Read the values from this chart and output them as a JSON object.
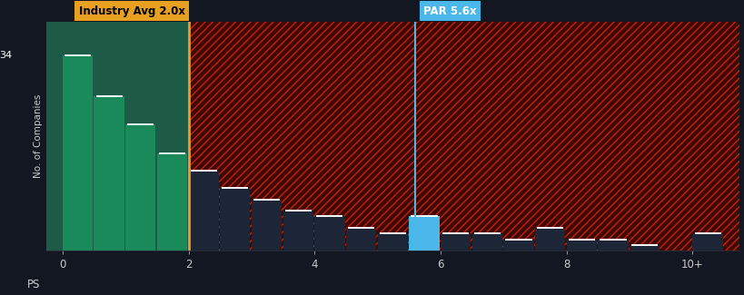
{
  "background_color": "#131722",
  "plot_bg_color": "#131722",
  "xlabel": "PS",
  "ylabel": "No. of Companies",
  "bar_edges": [
    0,
    0.5,
    1.0,
    1.5,
    2.0,
    2.5,
    3.0,
    3.5,
    4.0,
    4.5,
    5.0,
    5.5,
    6.0,
    6.5,
    7.0,
    7.5,
    8.0,
    8.5,
    9.0,
    9.5,
    10.0,
    10.5
  ],
  "bar_values": [
    34,
    27,
    22,
    17,
    14,
    11,
    9,
    7,
    6,
    4,
    3,
    6,
    3,
    3,
    2,
    4,
    2,
    2,
    1,
    0,
    3
  ],
  "bar_width": 0.48,
  "industry_avg": 2.0,
  "par_value": 5.6,
  "par_bar_start": 5.5,
  "industry_line_color": "#e8a020",
  "par_line_color": "#4ab8e8",
  "green_bar_color": "#1a8a5a",
  "green_bg_color": "#2ecc85",
  "par_bar_color": "#4ab8e8",
  "dark_bar_color": "#1c2637",
  "hatch_fg_color": "#cc2200",
  "hatch_bg_color": "#3d0808",
  "tick_color": "#cccccc",
  "label_color": "#cccccc",
  "y_max_label": "34",
  "xlim_min": -0.25,
  "xlim_max": 10.75,
  "ylim_min": 0,
  "ylim_max": 40
}
